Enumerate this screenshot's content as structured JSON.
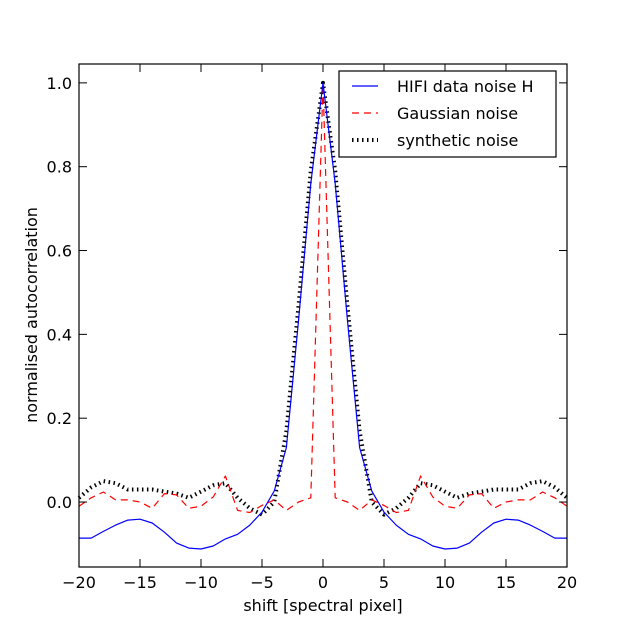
{
  "chart_data": {
    "type": "line",
    "title": "",
    "xlabel": "shift [spectral pixel]",
    "ylabel": "normalised autocorrelation",
    "xlim": [
      -20,
      20
    ],
    "ylim": [
      -0.155,
      1.045
    ],
    "xticks": [
      -20,
      -15,
      -10,
      -5,
      0,
      5,
      10,
      15,
      20
    ],
    "xtick_labels": [
      "−20",
      "−15",
      "−10",
      "−5",
      "0",
      "5",
      "10",
      "15",
      "20"
    ],
    "yticks": [
      0.0,
      0.2,
      0.4,
      0.6,
      0.8,
      1.0
    ],
    "ytick_labels": [
      "0.0",
      "0.2",
      "0.4",
      "0.6",
      "0.8",
      "1.0"
    ],
    "grid": false,
    "legend_position": "top-right",
    "x": [
      -20,
      -19,
      -18,
      -17,
      -16,
      -15,
      -14,
      -13,
      -12,
      -11,
      -10,
      -9,
      -8,
      -7,
      -6,
      -5,
      -4,
      -3,
      -2,
      -1,
      0,
      1,
      2,
      3,
      4,
      5,
      6,
      7,
      8,
      9,
      10,
      11,
      12,
      13,
      14,
      15,
      16,
      17,
      18,
      19,
      20
    ],
    "series": [
      {
        "name": "HIFI data noise H",
        "color": "#0000ff",
        "style": "solid",
        "half": [
          -0.086,
          -0.086,
          -0.07,
          -0.055,
          -0.043,
          -0.041,
          -0.05,
          -0.072,
          -0.098,
          -0.11,
          -0.112,
          -0.105,
          -0.088,
          -0.077,
          -0.055,
          -0.024,
          0.026,
          0.13,
          0.435,
          0.76,
          1.0
        ]
      },
      {
        "name": "Gaussian noise",
        "color": "#ff0000",
        "style": "dashed",
        "half": [
          -0.01,
          0.01,
          0.024,
          0.005,
          0.005,
          0.0,
          -0.015,
          0.02,
          0.017,
          -0.015,
          -0.01,
          0.012,
          0.062,
          -0.02,
          -0.025,
          -0.008,
          0.005,
          -0.02,
          0.0,
          0.01,
          1.0
        ]
      },
      {
        "name": "synthetic noise",
        "color": "#000000",
        "style": "dotted",
        "half": [
          0.01,
          0.035,
          0.05,
          0.045,
          0.03,
          0.03,
          0.03,
          0.025,
          0.02,
          0.01,
          0.025,
          0.04,
          0.045,
          0.01,
          -0.015,
          -0.03,
          0.0,
          0.17,
          0.47,
          0.79,
          1.0
        ]
      }
    ]
  }
}
